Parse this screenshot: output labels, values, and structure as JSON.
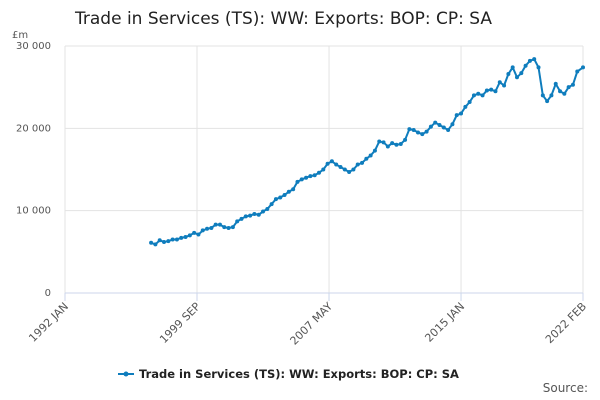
{
  "chart_data": {
    "type": "line",
    "title": "Trade in Services (TS): WW: Exports: BOP: CP: SA",
    "y_unit": "£m",
    "source": "Source:",
    "xlim": [
      "1992 JAN",
      "2022 FEB"
    ],
    "xticks": [
      "1992 JAN",
      "1999 SEP",
      "2007 MAY",
      "2015 JAN",
      "2022 FEB"
    ],
    "ylim": [
      0,
      30000
    ],
    "yticks": [
      0,
      {
        "value": 10000,
        "label": "10 000"
      },
      {
        "value": 20000,
        "label": "20 000"
      },
      {
        "value": 30000,
        "label": "30 000"
      }
    ],
    "grid": true,
    "legend": "bottom",
    "x": [
      "1997 JAN",
      "1997 APR",
      "1997 JUL",
      "1997 OCT",
      "1998 JAN",
      "1998 APR",
      "1998 JUL",
      "1998 OCT",
      "1999 JAN",
      "1999 APR",
      "1999 JUL",
      "1999 OCT",
      "2000 JAN",
      "2000 APR",
      "2000 JUL",
      "2000 OCT",
      "2001 JAN",
      "2001 APR",
      "2001 JUL",
      "2001 OCT",
      "2002 JAN",
      "2002 APR",
      "2002 JUL",
      "2002 OCT",
      "2003 JAN",
      "2003 APR",
      "2003 JUL",
      "2003 OCT",
      "2004 JAN",
      "2004 APR",
      "2004 JUL",
      "2004 OCT",
      "2005 JAN",
      "2005 APR",
      "2005 JUL",
      "2005 OCT",
      "2006 JAN",
      "2006 APR",
      "2006 JUL",
      "2006 OCT",
      "2007 JAN",
      "2007 APR",
      "2007 JUL",
      "2007 OCT",
      "2008 JAN",
      "2008 APR",
      "2008 JUL",
      "2008 OCT",
      "2009 JAN",
      "2009 APR",
      "2009 JUL",
      "2009 OCT",
      "2010 JAN",
      "2010 APR",
      "2010 JUL",
      "2010 OCT",
      "2011 JAN",
      "2011 APR",
      "2011 JUL",
      "2011 OCT",
      "2012 JAN",
      "2012 APR",
      "2012 JUL",
      "2012 OCT",
      "2013 JAN",
      "2013 APR",
      "2013 JUL",
      "2013 OCT",
      "2014 JAN",
      "2014 APR",
      "2014 JUL",
      "2014 OCT",
      "2015 JAN",
      "2015 APR",
      "2015 JUL",
      "2015 OCT",
      "2016 JAN",
      "2016 APR",
      "2016 JUL",
      "2016 OCT",
      "2017 JAN",
      "2017 APR",
      "2017 JUL",
      "2017 OCT",
      "2018 JAN",
      "2018 APR",
      "2018 JUL",
      "2018 OCT",
      "2019 JAN",
      "2019 APR",
      "2019 JUL",
      "2019 OCT",
      "2020 JAN",
      "2020 APR",
      "2020 JUL",
      "2020 OCT",
      "2021 JAN",
      "2021 APR",
      "2021 JUL",
      "2021 OCT",
      "2022 FEB"
    ],
    "series": [
      {
        "name": "Trade in Services (TS): WW: Exports: BOP: CP: SA",
        "color": "#0f7dbd",
        "values": [
          6100,
          5900,
          6400,
          6200,
          6300,
          6500,
          6500,
          6700,
          6800,
          7000,
          7300,
          7100,
          7600,
          7800,
          7900,
          8300,
          8300,
          8000,
          7900,
          8000,
          8700,
          9000,
          9300,
          9400,
          9600,
          9500,
          9900,
          10200,
          10800,
          11400,
          11600,
          11900,
          12300,
          12600,
          13500,
          13800,
          14000,
          14200,
          14300,
          14600,
          15000,
          15700,
          16000,
          15600,
          15300,
          15000,
          14700,
          15000,
          15600,
          15800,
          16300,
          16700,
          17300,
          18400,
          18300,
          17800,
          18200,
          18000,
          18100,
          18600,
          19900,
          19800,
          19500,
          19300,
          19600,
          20200,
          20700,
          20400,
          20100,
          19800,
          20500,
          21600,
          21800,
          22600,
          23200,
          24000,
          24200,
          24000,
          24600,
          24700,
          24500,
          25600,
          25200,
          26600,
          27400,
          26200,
          26700,
          27600,
          28200,
          28400,
          27400,
          24000,
          23300,
          24000,
          25400,
          24500,
          24200,
          25000,
          25300,
          26900,
          27400
        ]
      }
    ]
  }
}
